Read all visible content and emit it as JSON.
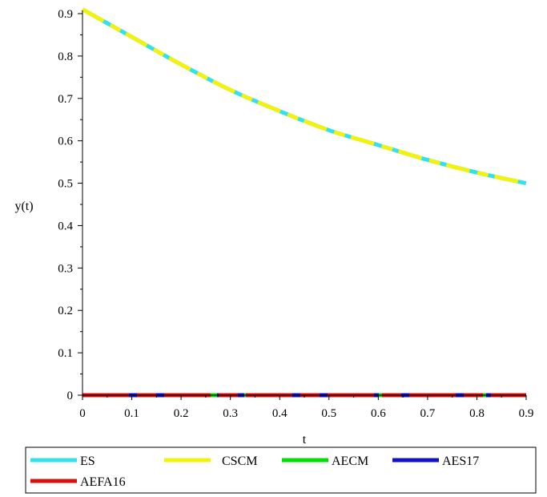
{
  "chart_data": {
    "type": "line",
    "xlabel": "t",
    "ylabel": "y(t)",
    "xlim": [
      0,
      0.9
    ],
    "ylim": [
      0,
      0.9
    ],
    "x_ticks": [
      "0",
      "0.1",
      "0.2",
      "0.3",
      "0.4",
      "0.5",
      "0.6",
      "0.7",
      "0.8",
      "0.9"
    ],
    "y_ticks": [
      "0",
      "0.1",
      "0.2",
      "0.3",
      "0.4",
      "0.5",
      "0.6",
      "0.7",
      "0.8",
      "0.9"
    ],
    "grid": false,
    "legend_position": "bottom",
    "x": [
      0,
      0.1,
      0.2,
      0.3,
      0.4,
      0.5,
      0.6,
      0.7,
      0.8,
      0.9
    ],
    "series": [
      {
        "name": "ES",
        "color": "#33e1ee",
        "values": [
          0.91,
          0.845,
          0.78,
          0.72,
          0.67,
          0.625,
          0.59,
          0.555,
          0.525,
          0.5
        ]
      },
      {
        "name": "CSCM",
        "color": "#f2f20d",
        "values": [
          0.91,
          0.845,
          0.78,
          0.72,
          0.67,
          0.625,
          0.59,
          0.555,
          0.525,
          0.5
        ]
      },
      {
        "name": "AECM",
        "color": "#00dd00",
        "values": [
          0,
          0,
          0,
          0,
          0,
          0,
          0,
          0,
          0,
          0
        ]
      },
      {
        "name": "AES17",
        "color": "#1010c8",
        "values": [
          0,
          0,
          0,
          0,
          0,
          0,
          0,
          0,
          0,
          0
        ]
      },
      {
        "name": "AEFA16",
        "color": "#d51010",
        "values": [
          0,
          0,
          0,
          0,
          0,
          0,
          0,
          0,
          0,
          0
        ]
      }
    ]
  }
}
